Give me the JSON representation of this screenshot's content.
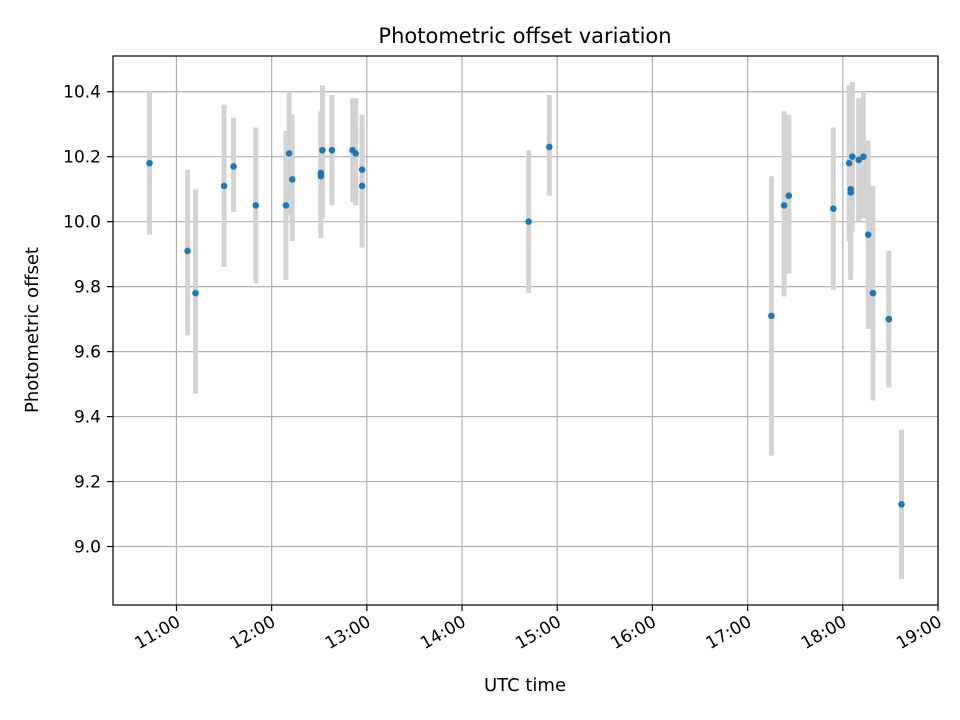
{
  "chart_data": {
    "type": "scatter",
    "title": "Photometric offset variation",
    "xlabel": "UTC time",
    "ylabel": "Photometric offset",
    "xlim": [
      "10:20",
      "19:00"
    ],
    "ylim": [
      8.82,
      10.51
    ],
    "x_ticks": [
      "11:00",
      "12:00",
      "13:00",
      "14:00",
      "15:00",
      "16:00",
      "17:00",
      "18:00",
      "19:00"
    ],
    "y_ticks": [
      "9.0",
      "9.2",
      "9.4",
      "9.6",
      "9.8",
      "10.0",
      "10.2",
      "10.4"
    ],
    "grid": true,
    "colors": {
      "marker": "#1f77b4",
      "errorbar": "#d3d3d3",
      "grid": "#b0b0b0"
    },
    "points": [
      {
        "t": "10:43",
        "y": 10.18,
        "lo": 9.96,
        "hi": 10.4
      },
      {
        "t": "11:07",
        "y": 9.91,
        "lo": 9.65,
        "hi": 10.16
      },
      {
        "t": "11:12",
        "y": 9.78,
        "lo": 9.47,
        "hi": 10.1
      },
      {
        "t": "11:30",
        "y": 10.11,
        "lo": 9.86,
        "hi": 10.36
      },
      {
        "t": "11:36",
        "y": 10.17,
        "lo": 10.03,
        "hi": 10.32
      },
      {
        "t": "11:50",
        "y": 10.05,
        "lo": 9.81,
        "hi": 10.29
      },
      {
        "t": "12:09",
        "y": 10.05,
        "lo": 9.82,
        "hi": 10.28
      },
      {
        "t": "12:11",
        "y": 10.21,
        "lo": 10.02,
        "hi": 10.4
      },
      {
        "t": "12:13",
        "y": 10.13,
        "lo": 9.94,
        "hi": 10.33
      },
      {
        "t": "12:31",
        "y": 10.15,
        "lo": 9.95,
        "hi": 10.34
      },
      {
        "t": "12:31",
        "y": 10.14,
        "lo": 9.95,
        "hi": 10.33
      },
      {
        "t": "12:32",
        "y": 10.22,
        "lo": 10.01,
        "hi": 10.42
      },
      {
        "t": "12:38",
        "y": 10.22,
        "lo": 10.05,
        "hi": 10.39
      },
      {
        "t": "12:51",
        "y": 10.22,
        "lo": 10.06,
        "hi": 10.38
      },
      {
        "t": "12:53",
        "y": 10.21,
        "lo": 10.05,
        "hi": 10.38
      },
      {
        "t": "12:57",
        "y": 10.16,
        "lo": 9.98,
        "hi": 10.33
      },
      {
        "t": "12:57",
        "y": 10.11,
        "lo": 9.92,
        "hi": 10.29
      },
      {
        "t": "14:42",
        "y": 10.0,
        "lo": 9.78,
        "hi": 10.22
      },
      {
        "t": "14:55",
        "y": 10.23,
        "lo": 10.08,
        "hi": 10.39
      },
      {
        "t": "17:15",
        "y": 9.71,
        "lo": 9.28,
        "hi": 10.14
      },
      {
        "t": "17:23",
        "y": 10.05,
        "lo": 9.77,
        "hi": 10.34
      },
      {
        "t": "17:26",
        "y": 10.08,
        "lo": 9.84,
        "hi": 10.33
      },
      {
        "t": "17:54",
        "y": 10.04,
        "lo": 9.79,
        "hi": 10.29
      },
      {
        "t": "18:04",
        "y": 10.18,
        "lo": 9.94,
        "hi": 10.42
      },
      {
        "t": "18:05",
        "y": 10.1,
        "lo": 9.83,
        "hi": 10.38
      },
      {
        "t": "18:05",
        "y": 10.09,
        "lo": 9.82,
        "hi": 10.36
      },
      {
        "t": "18:06",
        "y": 10.2,
        "lo": 9.97,
        "hi": 10.43
      },
      {
        "t": "18:10",
        "y": 10.19,
        "lo": 10.0,
        "hi": 10.38
      },
      {
        "t": "18:13",
        "y": 10.2,
        "lo": 10.01,
        "hi": 10.4
      },
      {
        "t": "18:16",
        "y": 9.96,
        "lo": 9.67,
        "hi": 10.25
      },
      {
        "t": "18:19",
        "y": 9.78,
        "lo": 9.45,
        "hi": 10.11
      },
      {
        "t": "18:29",
        "y": 9.7,
        "lo": 9.49,
        "hi": 9.91
      },
      {
        "t": "18:29",
        "y": 9.7,
        "lo": 9.49,
        "hi": 9.91
      },
      {
        "t": "18:37",
        "y": 9.13,
        "lo": 8.9,
        "hi": 9.36
      }
    ]
  }
}
